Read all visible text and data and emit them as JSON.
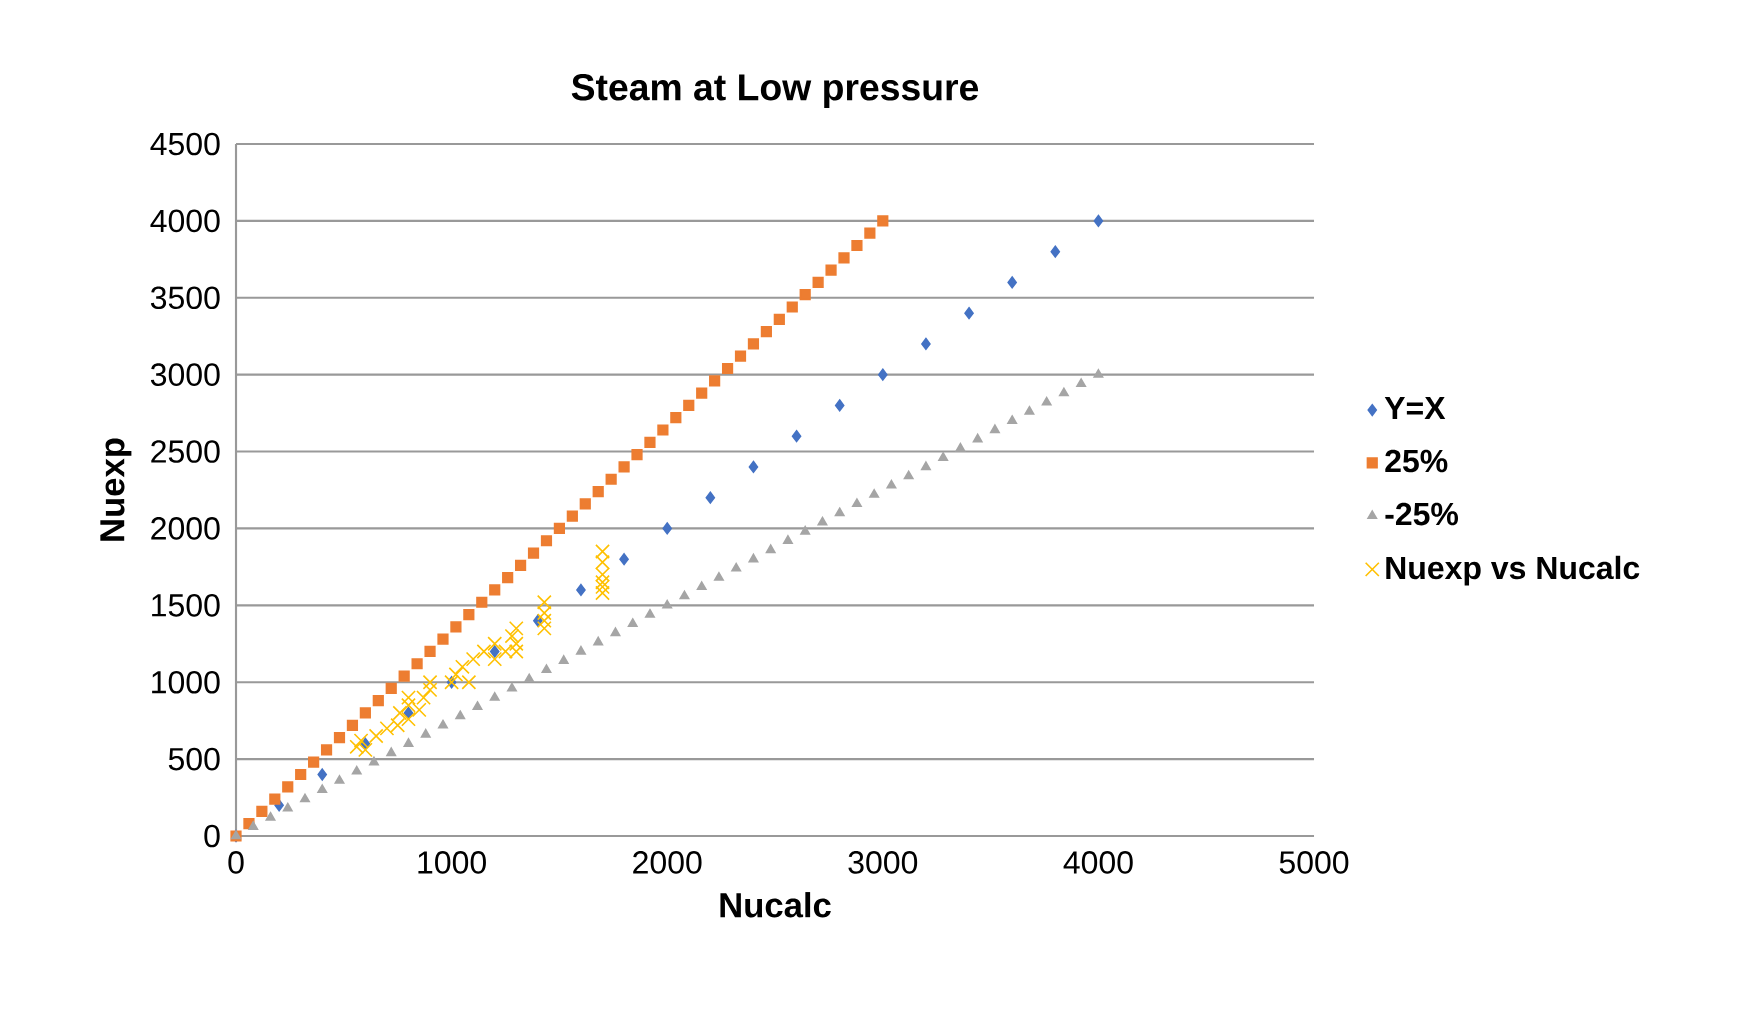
{
  "chart_data": {
    "type": "scatter",
    "title": "Steam at Low pressure",
    "xlabel": "Nucalc",
    "ylabel": "Nuexp",
    "xlim": [
      0,
      5000
    ],
    "ylim": [
      0,
      4500
    ],
    "xticks": [
      0,
      1000,
      2000,
      3000,
      4000,
      5000
    ],
    "yticks": [
      0,
      500,
      1000,
      1500,
      2000,
      2500,
      3000,
      3500,
      4000,
      4500
    ],
    "grid": "y",
    "legend": "right",
    "series": [
      {
        "name": "Y=X",
        "color": "#4472c4",
        "marker": "diamond",
        "x": [
          0,
          200,
          400,
          600,
          800,
          1000,
          1200,
          1400,
          1600,
          1800,
          2000,
          2200,
          2400,
          2600,
          2800,
          3000,
          3200,
          3400,
          3600,
          3800,
          4000
        ],
        "values": [
          0,
          200,
          400,
          600,
          800,
          1000,
          1200,
          1400,
          1600,
          1800,
          2000,
          2200,
          2400,
          2600,
          2800,
          3000,
          3200,
          3400,
          3600,
          3800,
          4000
        ]
      },
      {
        "name": "25%",
        "color": "#ed7d31",
        "marker": "square",
        "x": [
          0,
          60,
          120,
          180,
          240,
          300,
          360,
          420,
          480,
          540,
          600,
          660,
          720,
          780,
          840,
          900,
          960,
          1020,
          1080,
          1140,
          1200,
          1260,
          1320,
          1380,
          1440,
          1500,
          1560,
          1620,
          1680,
          1740,
          1800,
          1860,
          1920,
          1980,
          2040,
          2100,
          2160,
          2220,
          2280,
          2340,
          2400,
          2460,
          2520,
          2580,
          2640,
          2700,
          2760,
          2820,
          2880,
          2940,
          3000
        ],
        "values": [
          0,
          80,
          160,
          240,
          320,
          400,
          480,
          560,
          640,
          720,
          800,
          880,
          960,
          1040,
          1120,
          1200,
          1280,
          1360,
          1440,
          1520,
          1600,
          1680,
          1760,
          1840,
          1920,
          2000,
          2080,
          2160,
          2240,
          2320,
          2400,
          2480,
          2560,
          2640,
          2720,
          2800,
          2880,
          2960,
          3040,
          3120,
          3200,
          3280,
          3360,
          3440,
          3520,
          3600,
          3680,
          3760,
          3840,
          3920,
          4000
        ]
      },
      {
        "name": "-25%",
        "color": "#a5a5a5",
        "marker": "triangle",
        "x": [
          0,
          80,
          160,
          240,
          320,
          400,
          480,
          560,
          640,
          720,
          800,
          880,
          960,
          1040,
          1120,
          1200,
          1280,
          1360,
          1440,
          1520,
          1600,
          1680,
          1760,
          1840,
          1920,
          2000,
          2080,
          2160,
          2240,
          2320,
          2400,
          2480,
          2560,
          2640,
          2720,
          2800,
          2880,
          2960,
          3040,
          3120,
          3200,
          3280,
          3360,
          3440,
          3520,
          3600,
          3680,
          3760,
          3840,
          3920,
          4000
        ],
        "values": [
          0,
          60,
          120,
          180,
          240,
          300,
          360,
          420,
          480,
          540,
          600,
          660,
          720,
          780,
          840,
          900,
          960,
          1020,
          1080,
          1140,
          1200,
          1260,
          1320,
          1380,
          1440,
          1500,
          1560,
          1620,
          1680,
          1740,
          1800,
          1860,
          1920,
          1980,
          2040,
          2100,
          2160,
          2220,
          2280,
          2340,
          2400,
          2460,
          2520,
          2580,
          2640,
          2700,
          2760,
          2820,
          2880,
          2940,
          3000
        ]
      },
      {
        "name": "Nuexp vs Nucalc",
        "color": "#ffc000",
        "marker": "cross",
        "x": [
          560,
          600,
          580,
          650,
          700,
          750,
          760,
          800,
          800,
          850,
          870,
          900,
          900,
          800,
          1000,
          1020,
          1050,
          1100,
          1080,
          1150,
          1200,
          1200,
          1250,
          1280,
          1300,
          1300,
          1300,
          1430,
          1430,
          1430,
          1430,
          1700,
          1700,
          1700,
          1700,
          1700,
          1700
        ],
        "values": [
          580,
          560,
          620,
          650,
          700,
          720,
          800,
          760,
          850,
          820,
          900,
          950,
          1000,
          900,
          1000,
          1050,
          1100,
          1150,
          1000,
          1200,
          1150,
          1250,
          1200,
          1300,
          1250,
          1350,
          1200,
          1350,
          1400,
          1450,
          1520,
          1580,
          1650,
          1700,
          1780,
          1850,
          1620
        ]
      }
    ]
  }
}
